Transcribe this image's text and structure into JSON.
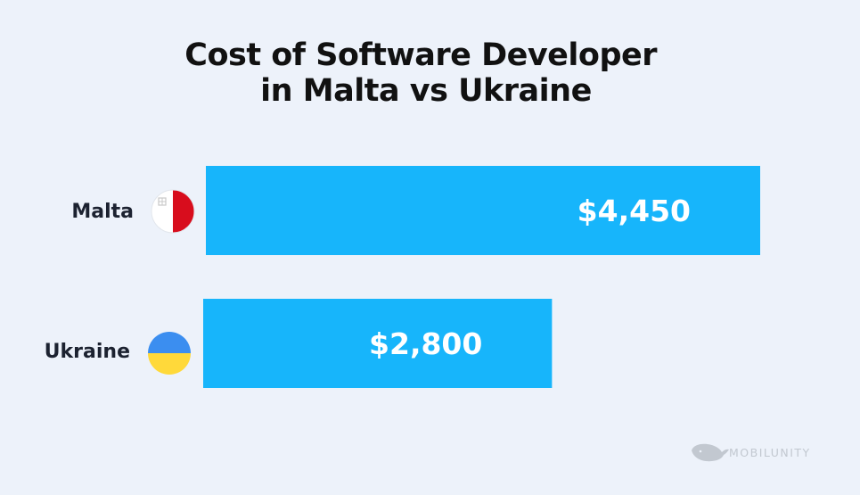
{
  "chart_data": {
    "type": "bar",
    "orientation": "horizontal",
    "title": "Cost of Software Developer\nin Malta vs Ukraine",
    "categories": [
      "Malta",
      "Ukraine"
    ],
    "values": [
      4450,
      2800
    ],
    "value_labels": [
      "$4,450",
      "$2,800"
    ],
    "bar_color": "#17b5fb",
    "xlabel": "",
    "ylabel": "",
    "grid": false,
    "legend": "none"
  },
  "flags": [
    {
      "name": "malta-flag-icon",
      "colors": [
        "#ffffff",
        "#d80d1d"
      ]
    },
    {
      "name": "ukraine-flag-icon",
      "colors": [
        "#3b8ef0",
        "#ffd93a"
      ]
    }
  ],
  "brand": {
    "name": "MOBILUNITY",
    "icon": "whale-icon"
  },
  "colors": {
    "background": "#edf2fa",
    "title": "#111111",
    "category_label": "#1c2230",
    "brand": "#c2c8d0"
  }
}
